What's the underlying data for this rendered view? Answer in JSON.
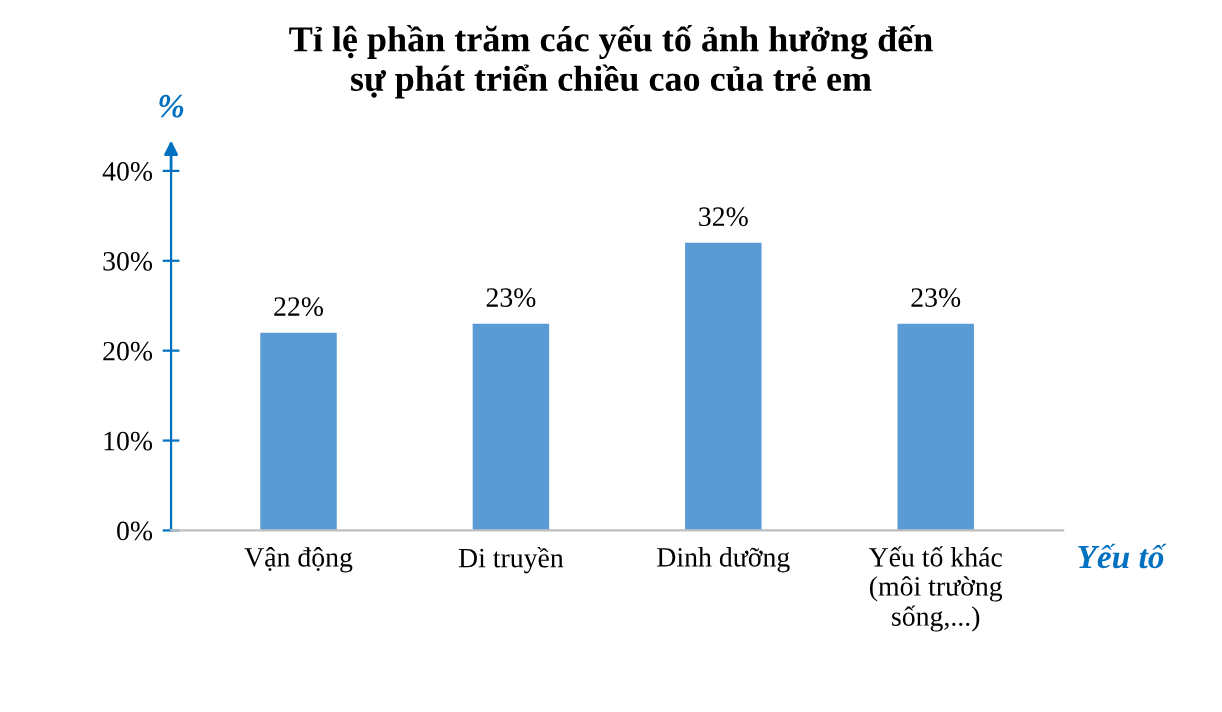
{
  "chart_data": {
    "type": "bar",
    "title": "Tỉ lệ phần trăm các yếu tố ảnh hưởng đến\nsự phát triển chiều cao của trẻ em",
    "ylabel": "%",
    "xlabel": "Yếu tố",
    "categories": [
      "Vận động",
      "Di truyền",
      "Dinh dưỡng",
      "Yếu tố khác\n(môi trường\nsống,...)"
    ],
    "values": [
      22,
      23,
      32,
      23
    ],
    "value_labels": [
      "22%",
      "23%",
      "32%",
      "23%"
    ],
    "color": "#5b9bd5",
    "ylim": [
      0,
      40
    ],
    "yticks": [
      {
        "value": 0,
        "label": "0%"
      },
      {
        "value": 10,
        "label": "10%"
      },
      {
        "value": 20,
        "label": "20%"
      },
      {
        "value": 30,
        "label": "30%"
      },
      {
        "value": 40,
        "label": "40%"
      }
    ],
    "grid": false
  }
}
